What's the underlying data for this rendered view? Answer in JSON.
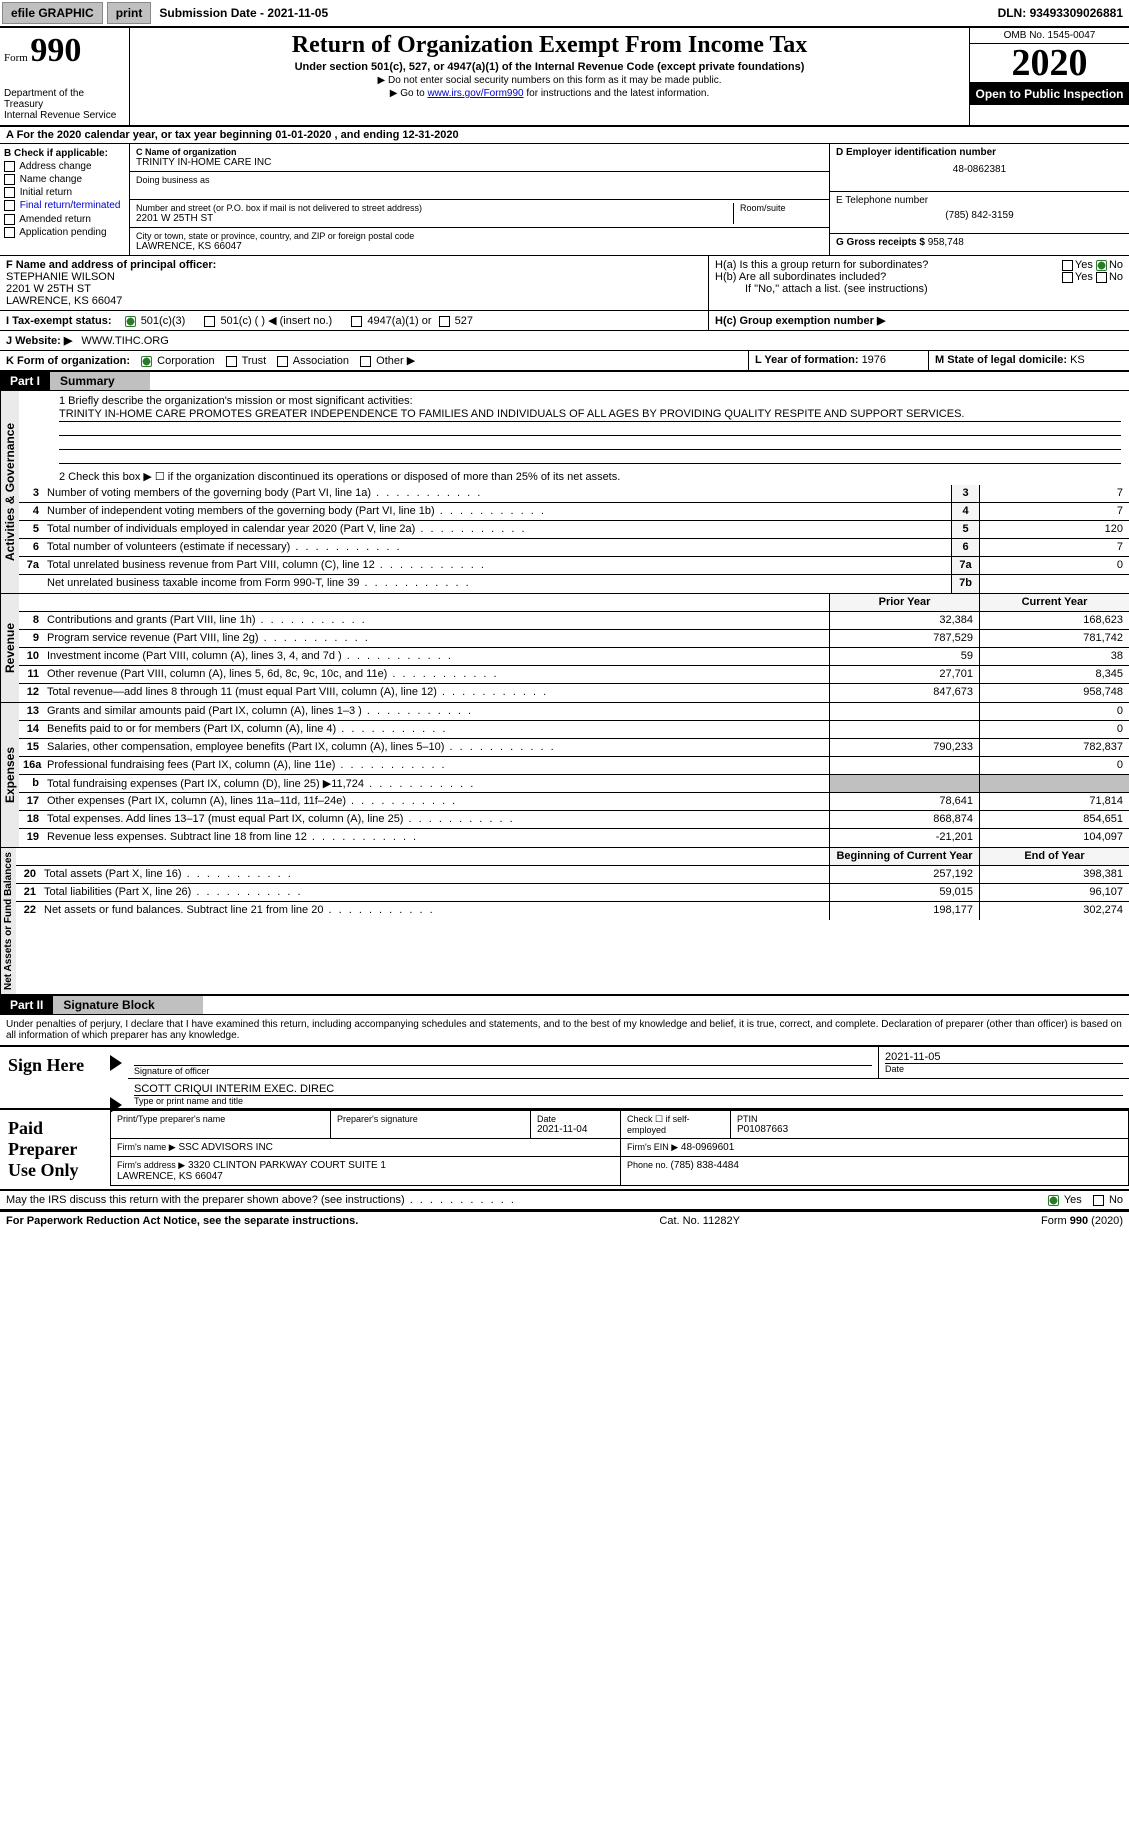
{
  "topbar": {
    "efile": "efile GRAPHIC",
    "print": "print",
    "submission_label": "Submission Date - ",
    "submission_date": "2021-11-05",
    "dln_label": "DLN: ",
    "dln": "93493309026881"
  },
  "header": {
    "form_label": "Form",
    "form_num": "990",
    "dept": "Department of the Treasury\nInternal Revenue Service",
    "title": "Return of Organization Exempt From Income Tax",
    "sub1": "Under section 501(c), 527, or 4947(a)(1) of the Internal Revenue Code (except private foundations)",
    "sub2": "▶ Do not enter social security numbers on this form as it may be made public.",
    "sub3_a": "▶ Go to ",
    "sub3_link": "www.irs.gov/Form990",
    "sub3_b": " for instructions and the latest information.",
    "omb": "OMB No. 1545-0047",
    "year": "2020",
    "inspection": "Open to Public Inspection"
  },
  "line_a": "A For the 2020 calendar year, or tax year beginning 01-01-2020   , and ending 12-31-2020",
  "box_b": {
    "label": "B Check if applicable:",
    "options": [
      "Address change",
      "Name change",
      "Initial return",
      "Final return/terminated",
      "Amended return",
      "Application pending"
    ]
  },
  "box_c": {
    "name_label": "C Name of organization",
    "name": "TRINITY IN-HOME CARE INC",
    "dba_label": "Doing business as",
    "dba": "",
    "street_label": "Number and street (or P.O. box if mail is not delivered to street address)",
    "room_label": "Room/suite",
    "street": "2201 W 25TH ST",
    "city_label": "City or town, state or province, country, and ZIP or foreign postal code",
    "city": "LAWRENCE, KS  66047"
  },
  "box_d": {
    "label": "D Employer identification number",
    "value": "48-0862381"
  },
  "box_e": {
    "label": "E Telephone number",
    "value": "(785) 842-3159"
  },
  "box_g": {
    "label": "G Gross receipts $ ",
    "value": "958,748"
  },
  "box_f": {
    "label": "F Name and address of principal officer:",
    "name": "STEPHANIE WILSON",
    "street": "2201 W 25TH ST",
    "city": "LAWRENCE, KS  66047"
  },
  "box_h": {
    "ha": "H(a)  Is this a group return for subordinates?",
    "hb": "H(b)  Are all subordinates included?",
    "hb_note": "If \"No,\" attach a list. (see instructions)",
    "hc": "H(c)  Group exemption number ▶",
    "yes": "Yes",
    "no": "No"
  },
  "tax_status": {
    "label": "I   Tax-exempt status:",
    "opts": [
      "501(c)(3)",
      "501(c) (  ) ◀ (insert no.)",
      "4947(a)(1) or",
      "527"
    ]
  },
  "website": {
    "label": "J   Website: ▶",
    "value": "WWW.TIHC.ORG"
  },
  "box_k": {
    "label": "K Form of organization:",
    "opts": [
      "Corporation",
      "Trust",
      "Association",
      "Other ▶"
    ]
  },
  "box_l": {
    "label": "L Year of formation: ",
    "value": "1976"
  },
  "box_m": {
    "label": "M State of legal domicile: ",
    "value": "KS"
  },
  "part1": {
    "num": "Part I",
    "title": "Summary"
  },
  "mission": {
    "label": "1  Briefly describe the organization's mission or most significant activities:",
    "text": "TRINITY IN-HOME CARE PROMOTES GREATER INDEPENDENCE TO FAMILIES AND INDIVIDUALS OF ALL AGES BY PROVIDING QUALITY RESPITE AND SUPPORT SERVICES."
  },
  "line2": "2   Check this box ▶ ☐  if the organization discontinued its operations or disposed of more than 25% of its net assets.",
  "gov_lines": [
    {
      "n": "3",
      "d": "Number of voting members of the governing body (Part VI, line 1a)",
      "box": "3",
      "v": "7"
    },
    {
      "n": "4",
      "d": "Number of independent voting members of the governing body (Part VI, line 1b)",
      "box": "4",
      "v": "7"
    },
    {
      "n": "5",
      "d": "Total number of individuals employed in calendar year 2020 (Part V, line 2a)",
      "box": "5",
      "v": "120"
    },
    {
      "n": "6",
      "d": "Total number of volunteers (estimate if necessary)",
      "box": "6",
      "v": "7"
    },
    {
      "n": "7a",
      "d": "Total unrelated business revenue from Part VIII, column (C), line 12",
      "box": "7a",
      "v": "0"
    },
    {
      "n": "",
      "d": "Net unrelated business taxable income from Form 990-T, line 39",
      "box": "7b",
      "v": ""
    }
  ],
  "col_headers": {
    "prior": "Prior Year",
    "current": "Current Year",
    "beg": "Beginning of Current Year",
    "end": "End of Year"
  },
  "revenue_label": "Revenue",
  "revenue": [
    {
      "n": "8",
      "d": "Contributions and grants (Part VIII, line 1h)",
      "p": "32,384",
      "c": "168,623"
    },
    {
      "n": "9",
      "d": "Program service revenue (Part VIII, line 2g)",
      "p": "787,529",
      "c": "781,742"
    },
    {
      "n": "10",
      "d": "Investment income (Part VIII, column (A), lines 3, 4, and 7d )",
      "p": "59",
      "c": "38"
    },
    {
      "n": "11",
      "d": "Other revenue (Part VIII, column (A), lines 5, 6d, 8c, 9c, 10c, and 11e)",
      "p": "27,701",
      "c": "8,345"
    },
    {
      "n": "12",
      "d": "Total revenue—add lines 8 through 11 (must equal Part VIII, column (A), line 12)",
      "p": "847,673",
      "c": "958,748"
    }
  ],
  "expenses_label": "Expenses",
  "expenses": [
    {
      "n": "13",
      "d": "Grants and similar amounts paid (Part IX, column (A), lines 1–3 )",
      "p": "",
      "c": "0"
    },
    {
      "n": "14",
      "d": "Benefits paid to or for members (Part IX, column (A), line 4)",
      "p": "",
      "c": "0"
    },
    {
      "n": "15",
      "d": "Salaries, other compensation, employee benefits (Part IX, column (A), lines 5–10)",
      "p": "790,233",
      "c": "782,837"
    },
    {
      "n": "16a",
      "d": "Professional fundraising fees (Part IX, column (A), line 11e)",
      "p": "",
      "c": "0"
    },
    {
      "n": "b",
      "d": "Total fundraising expenses (Part IX, column (D), line 25) ▶11,724",
      "p": "shaded",
      "c": "shaded"
    },
    {
      "n": "17",
      "d": "Other expenses (Part IX, column (A), lines 11a–11d, 11f–24e)",
      "p": "78,641",
      "c": "71,814"
    },
    {
      "n": "18",
      "d": "Total expenses. Add lines 13–17 (must equal Part IX, column (A), line 25)",
      "p": "868,874",
      "c": "854,651"
    },
    {
      "n": "19",
      "d": "Revenue less expenses. Subtract line 18 from line 12",
      "p": "-21,201",
      "c": "104,097"
    }
  ],
  "netassets_label": "Net Assets or Fund Balances",
  "netassets": [
    {
      "n": "20",
      "d": "Total assets (Part X, line 16)",
      "p": "257,192",
      "c": "398,381"
    },
    {
      "n": "21",
      "d": "Total liabilities (Part X, line 26)",
      "p": "59,015",
      "c": "96,107"
    },
    {
      "n": "22",
      "d": "Net assets or fund balances. Subtract line 21 from line 20",
      "p": "198,177",
      "c": "302,274"
    }
  ],
  "part2": {
    "num": "Part II",
    "title": "Signature Block"
  },
  "penalties": "Under penalties of perjury, I declare that I have examined this return, including accompanying schedules and statements, and to the best of my knowledge and belief, it is true, correct, and complete. Declaration of preparer (other than officer) is based on all information of which preparer has any knowledge.",
  "sign": {
    "here": "Sign Here",
    "sig_label": "Signature of officer",
    "date_label": "Date",
    "date": "2021-11-05",
    "name": "SCOTT CRIQUI INTERIM EXEC. DIREC",
    "name_label": "Type or print name and title"
  },
  "preparer": {
    "title": "Paid Preparer Use Only",
    "h1": "Print/Type preparer's name",
    "h2": "Preparer's signature",
    "h3": "Date",
    "date": "2021-11-04",
    "h4": "Check ☐ if self-employed",
    "h5": "PTIN",
    "ptin": "P01087663",
    "firm_label": "Firm's name   ▶",
    "firm": "SSC ADVISORS INC",
    "ein_label": "Firm's EIN ▶",
    "ein": "48-0969601",
    "addr_label": "Firm's address ▶",
    "addr": "3320 CLINTON PARKWAY COURT SUITE 1\nLAWRENCE, KS  66047",
    "phone_label": "Phone no. ",
    "phone": "(785) 838-4484"
  },
  "discuss": {
    "text": "May the IRS discuss this return with the preparer shown above? (see instructions)",
    "yes": "Yes",
    "no": "No"
  },
  "footer": {
    "left": "For Paperwork Reduction Act Notice, see the separate instructions.",
    "mid": "Cat. No. 11282Y",
    "right": "Form 990 (2020)"
  },
  "gov_label": "Activities & Governance"
}
